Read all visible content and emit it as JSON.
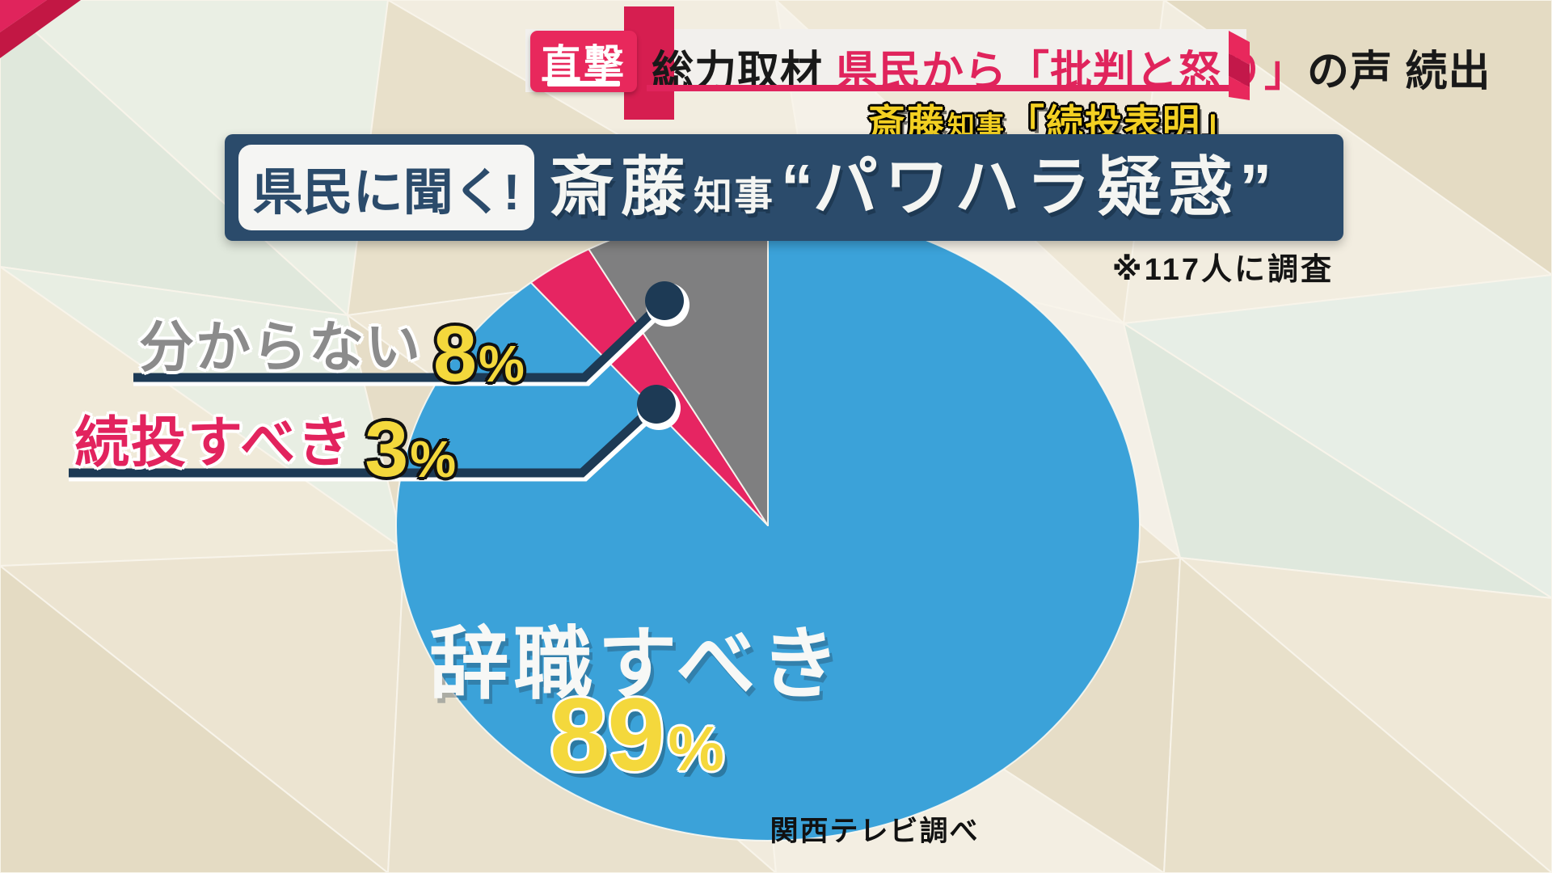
{
  "header": {
    "badge_label": "直撃",
    "headline": {
      "black_1": "総力取材",
      "pink": "県民から「批判と怒り」",
      "black_2": "の声 続出"
    },
    "subheadline": {
      "name": "斎藤",
      "title_small": "知事",
      "quoted": "「続投表明」"
    }
  },
  "title_bar": {
    "tag": "県民に聞く!",
    "name": "斎藤",
    "name_suffix_small": "知事",
    "quote_open": "“",
    "topic": "パワハラ疑惑",
    "quote_close": "”"
  },
  "survey_note": "※117人に調査",
  "source_note": "関西テレビ調べ",
  "chart_data": {
    "type": "pie",
    "title": "県民に聞く! 斎藤知事“パワハラ疑惑”",
    "sample_size_note": "※117人に調査",
    "source": "関西テレビ調べ",
    "unit": "%",
    "layout_note": "slices drawn clockwise starting at 12 o'clock; legend shown as callout lines for small slices and center label for main slice",
    "slices": [
      {
        "key": "resign",
        "label": "辞職すべき",
        "value": 89,
        "color": "#3ba2d9"
      },
      {
        "key": "continue",
        "label": "続投すべき",
        "value": 3,
        "color": "#e62562"
      },
      {
        "key": "unknown",
        "label": "分からない",
        "value": 8,
        "color": "#7f7f80"
      }
    ]
  },
  "colors": {
    "accent_pink": "#e0245c",
    "navy_bar": "#2b4b6b",
    "leader_line_navy": "#1d3a55",
    "number_yellow": "#f4d83c",
    "pie_blue": "#3ba2d9",
    "pie_gray": "#7f7f80",
    "pie_pink": "#e62562",
    "background_cream": "#ebe3d2"
  }
}
